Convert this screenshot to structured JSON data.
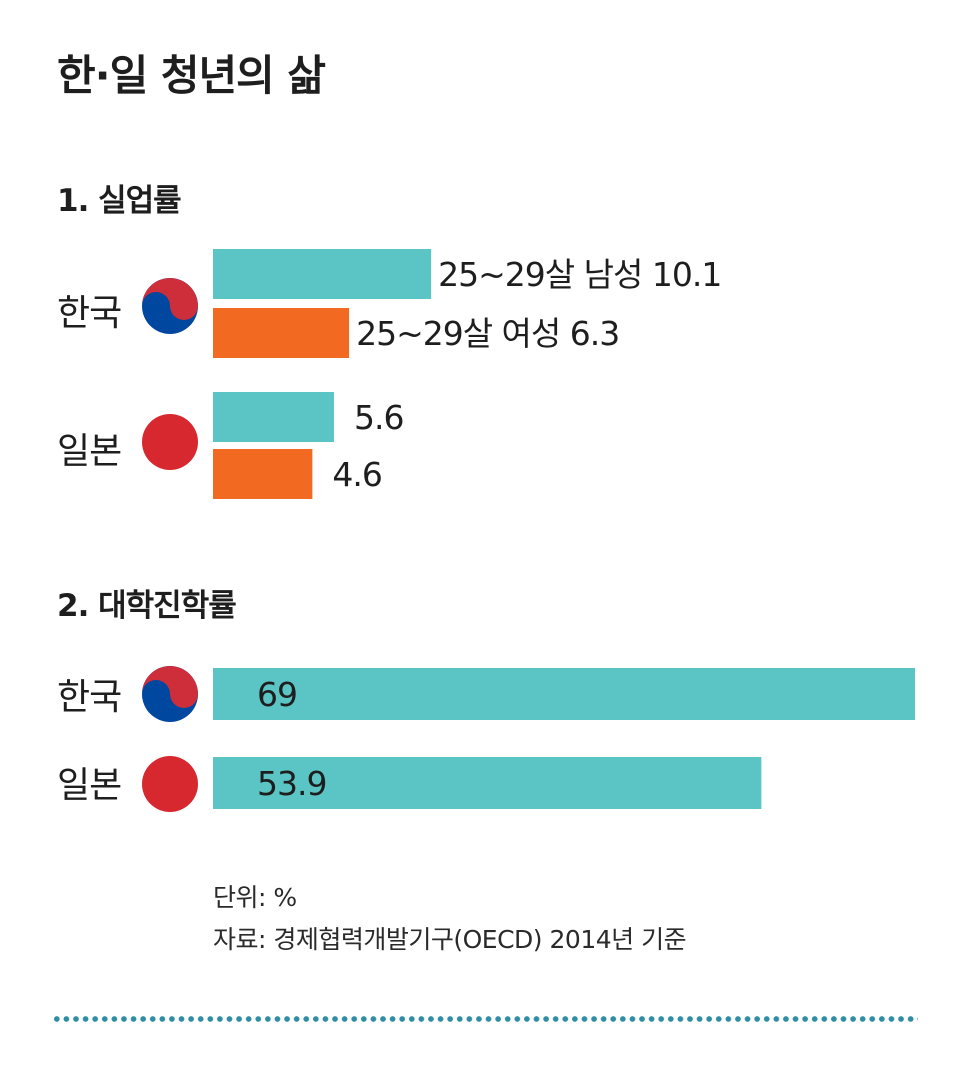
{
  "title": "한·일 청년의 삶",
  "colors": {
    "male_bar": "#5bc5c6",
    "female_bar": "#f26a21",
    "rate_bar": "#5bc5c6",
    "korea_red": "#cd2e3a",
    "korea_blue": "#0047a0",
    "japan_red": "#d7282f",
    "dotted_rule": "#2f8ea3"
  },
  "sections": [
    {
      "heading": "1. 실업률"
    },
    {
      "heading": "2. 대학진학률"
    }
  ],
  "countries": {
    "korea": {
      "label": "한국",
      "flag_icon": "korea-flag-icon"
    },
    "japan": {
      "label": "일본",
      "flag_icon": "japan-flag-icon"
    }
  },
  "notes": {
    "unit": "단위: %",
    "source": "자료: 경제협력개발기구(OECD) 2014년 기준"
  },
  "chart_data": [
    {
      "type": "bar",
      "orientation": "horizontal",
      "title": "1. 실업률",
      "categories": [
        "한국",
        "일본"
      ],
      "series": [
        {
          "name": "25~29살 남성",
          "values": [
            10.1,
            5.6
          ],
          "color": "#5bc5c6",
          "labels": [
            "25~29살 남성 10.1",
            "5.6"
          ]
        },
        {
          "name": "25~29살 여성",
          "values": [
            6.3,
            4.6
          ],
          "color": "#f26a21",
          "labels": [
            "25~29살 여성 6.3",
            "4.6"
          ]
        }
      ],
      "xlim": [
        0,
        69
      ],
      "grid": false
    },
    {
      "type": "bar",
      "orientation": "horizontal",
      "title": "2. 대학진학률",
      "categories": [
        "한국",
        "일본"
      ],
      "values": [
        69,
        53.9
      ],
      "labels": [
        "69",
        "53.9"
      ],
      "color": "#5bc5c6",
      "xlim": [
        0,
        69
      ],
      "grid": false
    }
  ]
}
